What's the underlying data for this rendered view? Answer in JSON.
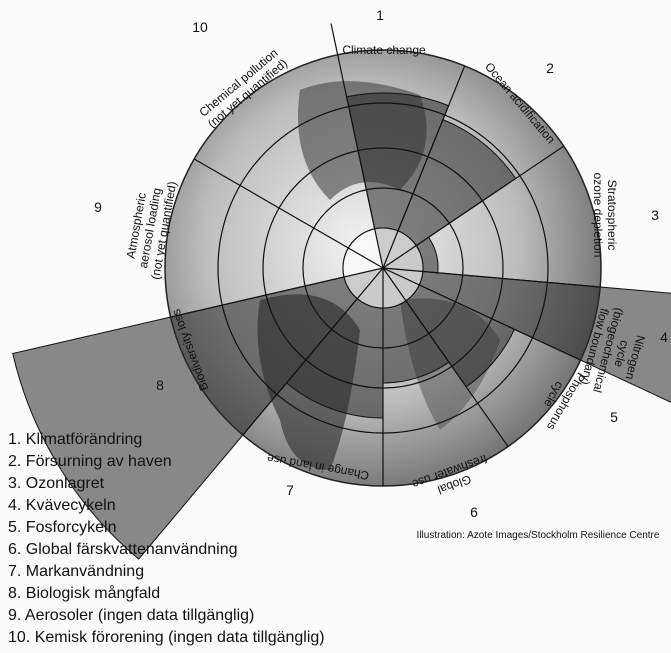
{
  "segments": [
    {
      "number": "1",
      "label": [
        "Climate change"
      ]
    },
    {
      "number": "2",
      "label": [
        "Ocean acidification"
      ]
    },
    {
      "number": "3",
      "label": [
        "Stratospheric",
        "ozone depletion"
      ]
    },
    {
      "number": "4",
      "label": [
        "Nitrogen",
        "cycle",
        "(biogeochemical",
        "flow boundary)"
      ]
    },
    {
      "number": "5",
      "label": [
        "Phosphorus",
        "cycle"
      ]
    },
    {
      "number": "6",
      "label": [
        "Global",
        "freshwater use"
      ]
    },
    {
      "number": "7",
      "label": [
        "Change in land use"
      ]
    },
    {
      "number": "8",
      "label": [
        "Biodiversity loss"
      ]
    },
    {
      "number": "9",
      "label": [
        "Atmospheric",
        "aerosol loading",
        "(not yet quantified)"
      ]
    },
    {
      "number": "10",
      "label": [
        "Chemical pollution",
        "(not yet quantified)"
      ]
    }
  ],
  "credit": "Illustration: Azote Images/Stockholm Resilience Centre",
  "legend": [
    "1. Klimatförändring",
    "2. Försurning av haven",
    "3. Ozonlagret",
    "4. Kvävecykeln",
    "5. Fosforcykeln",
    "6. Global färskvattenanvändning",
    "7. Markanvändning",
    "8. Biologisk mångfald",
    "9. Aerosoler (ingen data tillgänglig)",
    "10. Kemisk förorening (ingen data tillgänglig)"
  ]
}
